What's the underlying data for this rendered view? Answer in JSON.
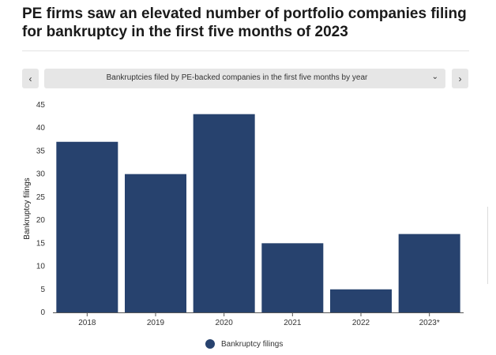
{
  "header": {
    "title": "PE firms saw an elevated number of portfolio companies filing for bankruptcy in the first five months of 2023"
  },
  "nav": {
    "prev_label": "‹",
    "next_label": "›",
    "dropdown_label": "Bankruptcies filed by PE-backed companies in the first five months by year",
    "caret": "⌄"
  },
  "chart_data": {
    "type": "bar",
    "categories": [
      "2018",
      "2019",
      "2020",
      "2021",
      "2022",
      "2023*"
    ],
    "series": [
      {
        "name": "Bankruptcy filings",
        "values": [
          37,
          30,
          43,
          15,
          5,
          17
        ]
      }
    ],
    "ylabel": "Bankruptcy filings",
    "xlabel": "",
    "ylim": [
      0,
      45
    ],
    "yticks": [
      0,
      5,
      10,
      15,
      20,
      25,
      30,
      35,
      40,
      45
    ],
    "grid": false,
    "legend": "bottom-center",
    "color": "#27426e"
  },
  "legend": {
    "label": "Bankruptcy filings"
  }
}
